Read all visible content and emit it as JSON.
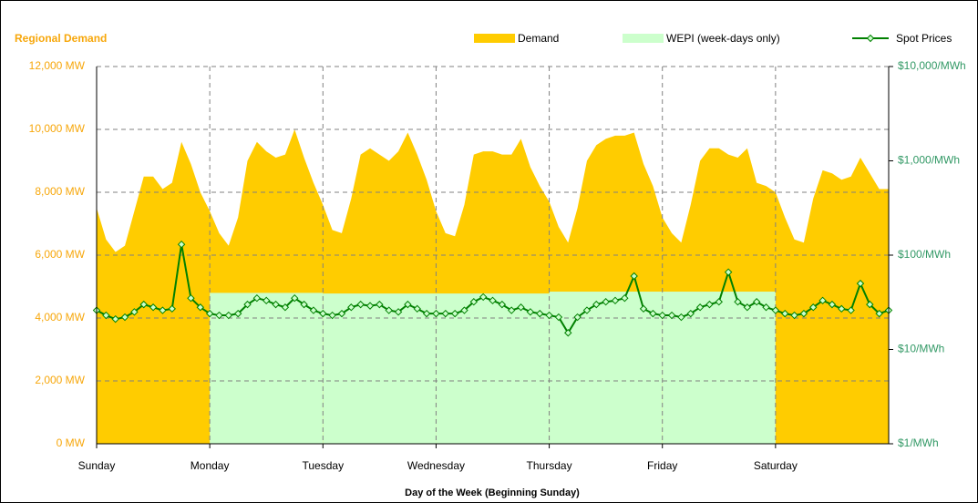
{
  "chart_data": {
    "type": "area-line",
    "title": "Regional Demand",
    "xlabel": "Day of the Week (Beginning Sunday)",
    "xlim": [
      0,
      168
    ],
    "xticks": [
      {
        "value": 0,
        "label": "Sunday"
      },
      {
        "value": 24,
        "label": "Monday"
      },
      {
        "value": 48,
        "label": "Tuesday"
      },
      {
        "value": 72,
        "label": "Wednesday"
      },
      {
        "value": 96,
        "label": "Thursday"
      },
      {
        "value": 120,
        "label": "Friday"
      },
      {
        "value": 144,
        "label": "Saturday"
      }
    ],
    "ylim": [
      0,
      12000
    ],
    "yticks": [
      {
        "value": 0,
        "label": "0 MW"
      },
      {
        "value": 2000,
        "label": "2,000 MW"
      },
      {
        "value": 4000,
        "label": "4,000 MW"
      },
      {
        "value": 6000,
        "label": "6,000 MW"
      },
      {
        "value": 8000,
        "label": "8,000 MW"
      },
      {
        "value": 10000,
        "label": "10,000 MW"
      },
      {
        "value": 12000,
        "label": "12,000 MW"
      }
    ],
    "y2lim": [
      1,
      10000
    ],
    "y2log": true,
    "y2ticks": [
      {
        "value": 1,
        "label": "$1/MWh"
      },
      {
        "value": 10,
        "label": "$10/MWh"
      },
      {
        "value": 100,
        "label": "$100/MWh"
      },
      {
        "value": 1000,
        "label": "$1,000/MWh"
      },
      {
        "value": 10000,
        "label": "$10,000/MWh"
      }
    ],
    "grid": true,
    "x": [
      0,
      2,
      4,
      6,
      8,
      10,
      12,
      14,
      16,
      18,
      20,
      22,
      24,
      26,
      28,
      30,
      32,
      34,
      36,
      38,
      40,
      42,
      44,
      46,
      48,
      50,
      52,
      54,
      56,
      58,
      60,
      62,
      64,
      66,
      68,
      70,
      72,
      74,
      76,
      78,
      80,
      82,
      84,
      86,
      88,
      90,
      92,
      94,
      96,
      98,
      100,
      102,
      104,
      106,
      108,
      110,
      112,
      114,
      116,
      118,
      120,
      122,
      124,
      126,
      128,
      130,
      132,
      134,
      136,
      138,
      140,
      142,
      144,
      146,
      148,
      150,
      152,
      154,
      156,
      158,
      160,
      162,
      164,
      166,
      168
    ],
    "series": [
      {
        "name": "Demand",
        "color": "#FFCC00",
        "kind": "area",
        "values": [
          7500,
          6500,
          6100,
          6300,
          7400,
          8500,
          8500,
          8100,
          8300,
          9600,
          8900,
          8000,
          7400,
          6700,
          6300,
          7200,
          9000,
          9600,
          9300,
          9100,
          9200,
          10000,
          9100,
          8300,
          7600,
          6800,
          6700,
          7800,
          9200,
          9400,
          9200,
          9000,
          9300,
          9900,
          9200,
          8400,
          7400,
          6700,
          6600,
          7600,
          9200,
          9300,
          9300,
          9200,
          9200,
          9700,
          8800,
          8200,
          7700,
          6900,
          6400,
          7500,
          9000,
          9500,
          9700,
          9800,
          9800,
          9900,
          8900,
          8200,
          7200,
          6700,
          6400,
          7600,
          9000,
          9400,
          9400,
          9200,
          9100,
          9400,
          8300,
          8200,
          8000,
          7200,
          6500,
          6400,
          7800,
          8700,
          8600,
          8400,
          8500,
          9100,
          8600,
          8100,
          8100
        ]
      },
      {
        "name": "WEPI (week-days only)",
        "color": "#CCFFCC",
        "kind": "step",
        "x": [
          24,
          48,
          72,
          96,
          120
        ],
        "width": 24,
        "values": [
          4800,
          4780,
          4780,
          4840,
          4840
        ]
      },
      {
        "name": "Spot Prices",
        "color": "#008000",
        "kind": "line",
        "axis": "y2",
        "values": [
          26,
          23,
          21,
          22,
          25,
          30,
          28,
          26,
          27,
          130,
          35,
          28,
          24,
          23,
          23,
          24,
          30,
          35,
          33,
          30,
          28,
          35,
          30,
          26,
          24,
          23,
          24,
          28,
          30,
          29,
          30,
          26,
          25,
          30,
          27,
          24,
          24,
          24,
          24,
          26,
          32,
          36,
          33,
          30,
          26,
          28,
          25,
          24,
          23,
          22,
          15,
          22,
          26,
          30,
          32,
          33,
          35,
          60,
          27,
          24,
          23,
          23,
          22,
          24,
          28,
          30,
          32,
          66,
          32,
          28,
          32,
          28,
          26,
          24,
          23,
          24,
          28,
          33,
          30,
          27,
          26,
          50,
          30,
          24,
          26
        ]
      }
    ]
  }
}
